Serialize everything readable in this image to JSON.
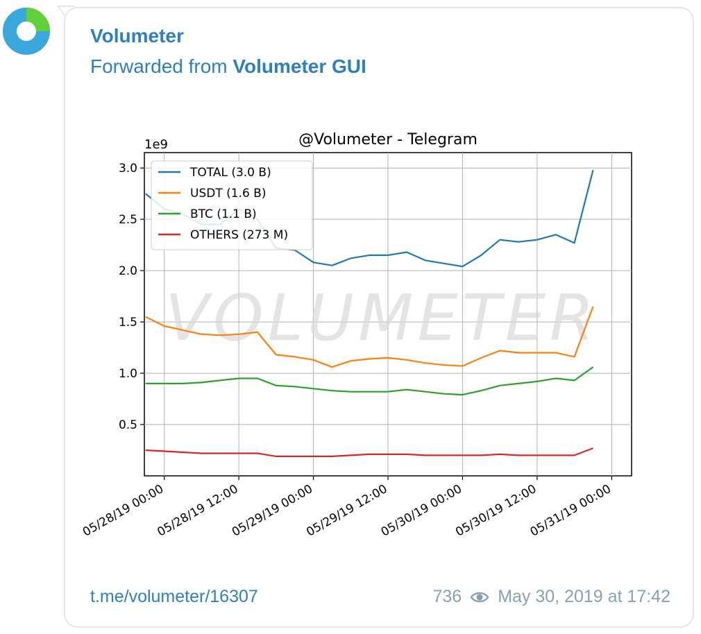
{
  "message": {
    "channel_name": "Volumeter",
    "forwarded_prefix": "Forwarded from",
    "forwarded_source": "Volumeter GUI",
    "link": "t.me/volumeter/16307",
    "views": "736",
    "timestamp": "May 30, 2019 at 17:42",
    "avatar_colors": {
      "ring": "#3aa8dd",
      "segment": "#5fd23a"
    }
  },
  "chart_data": {
    "type": "line",
    "title": "@Volumeter - Telegram",
    "y_multiplier_label": "1e9",
    "watermark": "VOLUMETER",
    "xlabel": "",
    "ylabel": "",
    "xlim": [
      "05/27/19 20:48",
      "05/31/19 03:12"
    ],
    "ylim": [
      0.0,
      3.15
    ],
    "yticks": [
      0.5,
      1.0,
      1.5,
      2.0,
      2.5,
      3.0
    ],
    "ytick_labels": [
      "0.5",
      "1.0",
      "1.5",
      "2.0",
      "2.5",
      "3.0"
    ],
    "xticks": [
      "05/28/19 00:00",
      "05/28/19 12:00",
      "05/29/19 00:00",
      "05/29/19 12:00",
      "05/30/19 00:00",
      "05/30/19 12:00",
      "05/31/19 00:00"
    ],
    "xtick_labels": [
      "05/28/19 00:00",
      "05/28/19 12:00",
      "05/29/19 00:00",
      "05/29/19 12:00",
      "05/30/19 00:00",
      "05/30/19 12:00",
      "05/31/19 00:00"
    ],
    "grid": true,
    "legend_position": "top-left",
    "x": [
      "05/27/19 21:00",
      "05/28/19 00:00",
      "05/28/19 03:00",
      "05/28/19 06:00",
      "05/28/19 09:00",
      "05/28/19 12:00",
      "05/28/19 15:00",
      "05/28/19 18:00",
      "05/28/19 21:00",
      "05/29/19 00:00",
      "05/29/19 03:00",
      "05/29/19 06:00",
      "05/29/19 09:00",
      "05/29/19 12:00",
      "05/29/19 15:00",
      "05/29/19 18:00",
      "05/29/19 21:00",
      "05/30/19 00:00",
      "05/30/19 03:00",
      "05/30/19 06:00",
      "05/30/19 09:00",
      "05/30/19 12:00",
      "05/30/19 15:00",
      "05/30/19 18:00",
      "05/30/19 21:00"
    ],
    "series": [
      {
        "name": "TOTAL (3.0 B)",
        "color": "#1f77b4",
        "values": [
          2.75,
          2.6,
          2.55,
          2.45,
          2.45,
          2.6,
          2.5,
          2.22,
          2.2,
          2.08,
          2.05,
          2.12,
          2.15,
          2.15,
          2.18,
          2.1,
          2.07,
          2.04,
          2.15,
          2.3,
          2.28,
          2.3,
          2.35,
          2.27,
          2.98
        ]
      },
      {
        "name": "USDT (1.6 B)",
        "color": "#ff7f0e",
        "values": [
          1.55,
          1.46,
          1.42,
          1.38,
          1.37,
          1.38,
          1.4,
          1.18,
          1.16,
          1.13,
          1.06,
          1.12,
          1.14,
          1.15,
          1.13,
          1.1,
          1.08,
          1.07,
          1.15,
          1.22,
          1.2,
          1.2,
          1.2,
          1.16,
          1.65
        ]
      },
      {
        "name": "BTC (1.1 B)",
        "color": "#2ca02c",
        "values": [
          0.9,
          0.9,
          0.9,
          0.91,
          0.93,
          0.95,
          0.95,
          0.88,
          0.87,
          0.85,
          0.83,
          0.82,
          0.82,
          0.82,
          0.84,
          0.82,
          0.8,
          0.79,
          0.83,
          0.88,
          0.9,
          0.92,
          0.95,
          0.93,
          1.06
        ]
      },
      {
        "name": "OTHERS (273 M)",
        "color": "#d62728",
        "values": [
          0.25,
          0.24,
          0.23,
          0.22,
          0.22,
          0.22,
          0.22,
          0.19,
          0.19,
          0.19,
          0.19,
          0.2,
          0.21,
          0.21,
          0.21,
          0.2,
          0.2,
          0.2,
          0.2,
          0.21,
          0.2,
          0.2,
          0.2,
          0.2,
          0.27
        ]
      }
    ]
  }
}
